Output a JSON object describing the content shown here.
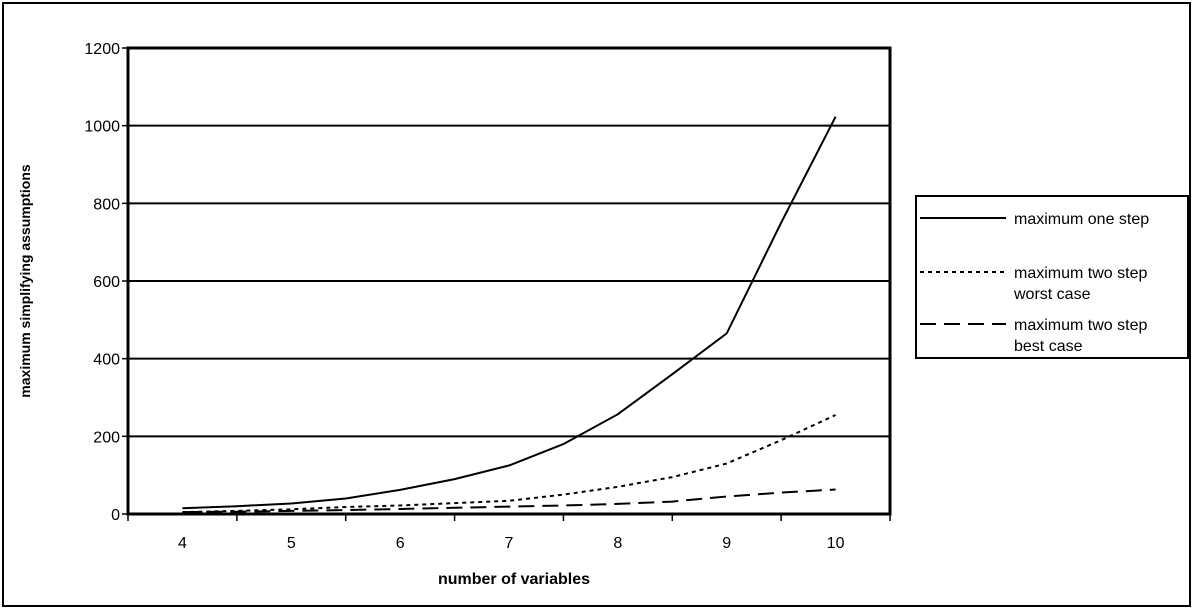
{
  "chart_data": {
    "type": "line",
    "title": "",
    "xlabel": "number of variables",
    "ylabel": "maximum simplifying assumptions",
    "categories": [
      "4",
      "5",
      "6",
      "7",
      "8",
      "9",
      "10"
    ],
    "x": [
      4,
      4.5,
      5,
      5.5,
      6,
      6.5,
      7,
      7.5,
      8,
      8.5,
      9,
      9.5,
      10
    ],
    "ylim": [
      0,
      1200
    ],
    "yticks": [
      "0",
      "200",
      "400",
      "600",
      "800",
      "1000",
      "1200"
    ],
    "grid": true,
    "legend_position": "right",
    "series": [
      {
        "name": "maximum one step",
        "style": "solid",
        "values": [
          15,
          20,
          27,
          40,
          62,
          90,
          125,
          180,
          257,
          360,
          465,
          750,
          1023
        ]
      },
      {
        "name": "maximum two step worst case",
        "style": "dotted",
        "values": [
          5,
          8,
          12,
          18,
          22,
          28,
          34,
          50,
          70,
          95,
          130,
          190,
          255
        ]
      },
      {
        "name": "maximum two step best case",
        "style": "dashed",
        "values": [
          5,
          6,
          8,
          10,
          13,
          16,
          19,
          22,
          26,
          32,
          45,
          55,
          63
        ]
      }
    ]
  }
}
